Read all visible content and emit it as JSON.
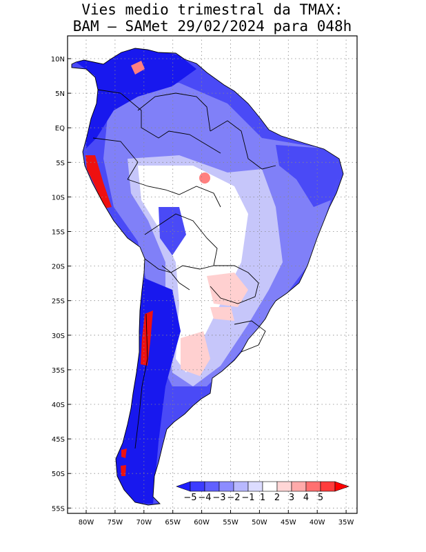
{
  "title": {
    "line1": "Vies medio trimestral da TMAX:",
    "line2": "BAM – SAMet 29/02/2024  para 048h"
  },
  "map": {
    "region": "South America",
    "lon_range": [
      -84,
      -34
    ],
    "lat_range": [
      -56,
      13
    ],
    "grid": "dotted",
    "lon_ticks": [
      "80W",
      "75W",
      "70W",
      "65W",
      "60W",
      "55W",
      "50W",
      "45W",
      "40W",
      "35W"
    ],
    "lat_ticks": [
      "10N",
      "5N",
      "EQ",
      "5S",
      "10S",
      "15S",
      "20S",
      "25S",
      "30S",
      "35S",
      "40S",
      "45S",
      "50S",
      "55S"
    ]
  },
  "colorbar": {
    "labels": [
      "−5",
      "−4",
      "−3",
      "−2",
      "−1",
      "1",
      "2",
      "3",
      "4",
      "5"
    ],
    "colors": [
      "#1f1fff",
      "#3c3cff",
      "#6060ff",
      "#8c8cff",
      "#b8b8ff",
      "#dcdcff",
      "#ffffff",
      "#ffd6d6",
      "#ffaaaa",
      "#ff7070",
      "#ff3c3c",
      "#ff0000"
    ]
  },
  "field_colors": {
    "strong_cold": "#1818ee",
    "cold": "#4a4af6",
    "mild_cold": "#8080f8",
    "light_cold": "#c6c6fa",
    "neutral": "#ffffff",
    "light_warm": "#ffd0d0",
    "warm": "#ff8080",
    "strong_warm": "#ee1010"
  }
}
